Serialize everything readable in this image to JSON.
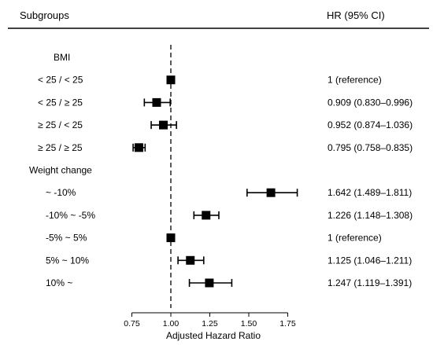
{
  "chart_data": {
    "type": "forest",
    "header": {
      "left": "Subgroups",
      "right": "HR (95% CI)"
    },
    "xlabel": "Adjusted Hazard Ratio",
    "xlim": [
      0.7,
      1.85
    ],
    "xticks": [
      0.75,
      1.0,
      1.25,
      1.5,
      1.75
    ],
    "xtick_labels": [
      "0.75",
      "1.00",
      "1.25",
      "1.50",
      "1.75"
    ],
    "reference_line": 1.0,
    "rows": [
      {
        "label": "BMI",
        "kind": "group"
      },
      {
        "label": "< 25 / < 25",
        "kind": "item",
        "hr": 1.0,
        "lo": 1.0,
        "hi": 1.0,
        "text": "1 (reference)"
      },
      {
        "label": "< 25 / ≥ 25",
        "kind": "item",
        "hr": 0.909,
        "lo": 0.83,
        "hi": 0.996,
        "text": "0.909 (0.830–0.996)"
      },
      {
        "label": "≥ 25 / < 25",
        "kind": "item",
        "hr": 0.952,
        "lo": 0.874,
        "hi": 1.036,
        "text": "0.952 (0.874–1.036)"
      },
      {
        "label": "≥ 25 / ≥ 25",
        "kind": "item",
        "hr": 0.795,
        "lo": 0.758,
        "hi": 0.835,
        "text": "0.795 (0.758–0.835)"
      },
      {
        "label": "Weight change",
        "kind": "group"
      },
      {
        "label": "~ -10%",
        "kind": "item",
        "hr": 1.642,
        "lo": 1.489,
        "hi": 1.811,
        "text": "1.642 (1.489–1.811)"
      },
      {
        "label": "-10% ~ -5%",
        "kind": "item",
        "hr": 1.226,
        "lo": 1.148,
        "hi": 1.308,
        "text": "1.226 (1.148–1.308)"
      },
      {
        "label": "-5% ~ 5%",
        "kind": "item",
        "hr": 1.0,
        "lo": 1.0,
        "hi": 1.0,
        "text": "1 (reference)"
      },
      {
        "label": "5% ~ 10%",
        "kind": "item",
        "hr": 1.125,
        "lo": 1.046,
        "hi": 1.211,
        "text": "1.125 (1.046–1.211)"
      },
      {
        "label": "10% ~",
        "kind": "item",
        "hr": 1.247,
        "lo": 1.119,
        "hi": 1.391,
        "text": "1.247 (1.119–1.391)"
      }
    ]
  }
}
